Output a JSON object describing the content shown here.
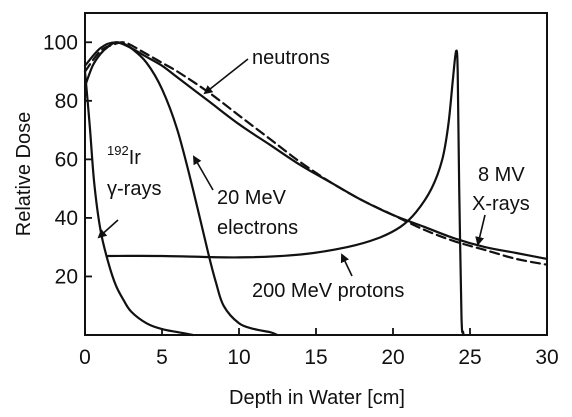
{
  "chart_data": {
    "type": "line",
    "title": "",
    "xlabel": "Depth in Water [cm]",
    "ylabel": "Relative Dose",
    "xlim": [
      0,
      30
    ],
    "ylim": [
      0,
      110
    ],
    "xticks": [
      0,
      5,
      10,
      15,
      20,
      25,
      30
    ],
    "yticks": [
      20,
      40,
      60,
      80,
      100
    ],
    "grid": false,
    "legend": "none",
    "series": [
      {
        "name": "neutrons",
        "style": "solid",
        "x": [
          0,
          1,
          2,
          3,
          4,
          5,
          6,
          8,
          10,
          12,
          14,
          16,
          18,
          20,
          22,
          24,
          26,
          28,
          30
        ],
        "y": [
          92,
          98,
          100,
          98,
          95,
          92,
          88,
          80,
          72,
          65,
          58,
          52,
          46,
          41,
          37,
          33,
          30,
          28,
          26
        ]
      },
      {
        "name": "8 MV X-rays",
        "style": "dashed",
        "x": [
          0,
          1,
          2,
          2.5,
          3,
          4,
          5,
          6,
          8,
          10,
          12,
          14,
          16,
          18,
          20,
          22,
          24,
          26,
          28,
          30
        ],
        "y": [
          90,
          97,
          99.5,
          100,
          99,
          96,
          93,
          90,
          83,
          75,
          67,
          59,
          52,
          46,
          41,
          36,
          32,
          29,
          26,
          24
        ]
      },
      {
        "name": "192Ir γ-rays",
        "style": "solid",
        "x": [
          0,
          0.3,
          0.6,
          1.0,
          1.5,
          2,
          2.5,
          3,
          4,
          5,
          6,
          7
        ],
        "y": [
          90,
          72,
          52,
          36,
          25,
          17,
          12,
          8,
          4,
          2,
          1,
          0
        ]
      },
      {
        "name": "20 MeV electrons",
        "style": "solid",
        "x": [
          0,
          0.5,
          1,
          1.5,
          2,
          2.5,
          3,
          4,
          5,
          6,
          7,
          8,
          8.5,
          9,
          10,
          11,
          12,
          12.5
        ],
        "y": [
          85,
          92,
          96,
          98.5,
          100,
          99.5,
          98,
          93,
          84,
          70,
          50,
          28,
          18,
          10,
          4,
          2,
          1,
          0
        ]
      },
      {
        "name": "200 MeV protons",
        "style": "solid",
        "x": [
          1.5,
          5,
          10,
          14,
          17,
          19,
          20.5,
          21.5,
          22.5,
          23.2,
          23.6,
          23.9,
          24.1,
          24.2,
          24.3,
          24.45,
          24.55,
          24.6
        ],
        "y": [
          27,
          27,
          26.5,
          27.5,
          30,
          33,
          37,
          42,
          50,
          60,
          72,
          88,
          97,
          90,
          50,
          6,
          1,
          0
        ]
      }
    ],
    "annotations": {
      "neutrons": "neutrons",
      "ir_superscript": "192",
      "ir_main": "Ir",
      "gamma": "γ-rays",
      "electrons_1": "20 MeV",
      "electrons_2": "electrons",
      "xrays_1": "8 MV",
      "xrays_2": "X-rays",
      "protons": "200 MeV protons"
    }
  }
}
